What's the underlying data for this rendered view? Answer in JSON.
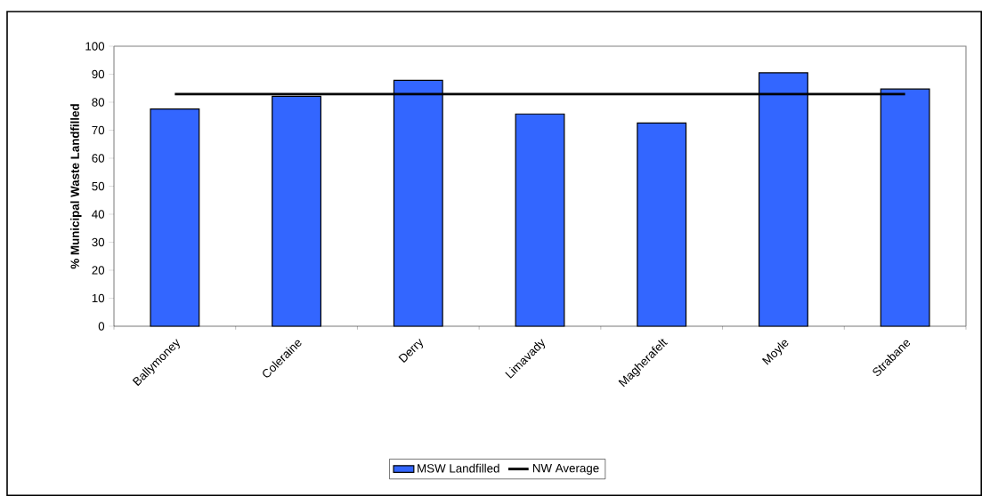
{
  "chart_data": {
    "type": "bar",
    "ylabel": "% Municipal Waste Landfilled",
    "categories": [
      "Ballymoney",
      "Coleraine",
      "Derry",
      "Limavady",
      "Magherafelt",
      "Moyle",
      "Strabane"
    ],
    "series": [
      {
        "name": "MSW Landfilled",
        "color": "#3366ff",
        "values": [
          77.6,
          82.1,
          87.8,
          75.8,
          72.6,
          90.5,
          84.7
        ]
      },
      {
        "name": "NW Average",
        "type": "line",
        "color": "#000000",
        "values": [
          82.9,
          82.9,
          82.9,
          82.9,
          82.9,
          82.9,
          82.9
        ]
      }
    ],
    "ylim": [
      0,
      100
    ],
    "yticks": [
      0,
      10,
      20,
      30,
      40,
      50,
      60,
      70,
      80,
      90,
      100
    ],
    "legend": "bottom",
    "grid": false
  }
}
